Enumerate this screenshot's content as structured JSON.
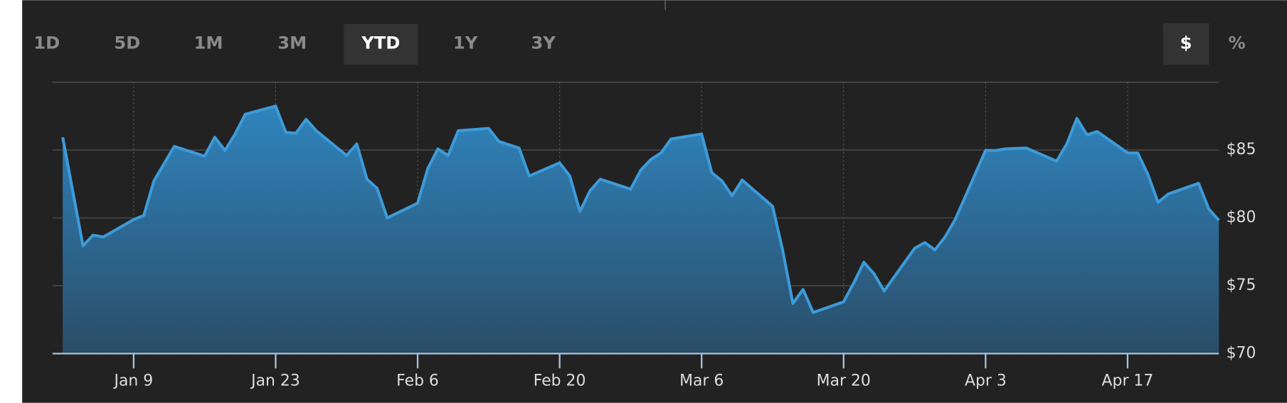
{
  "controls": {
    "ranges": [
      "1D",
      "5D",
      "1M",
      "3M",
      "YTD",
      "1Y",
      "3Y"
    ],
    "active_range": "YTD",
    "units": [
      "$",
      "%"
    ],
    "active_unit": "$"
  },
  "chart_data": {
    "type": "area",
    "color": "#3d9bd9",
    "grid": true,
    "x": [
      "Jan 2",
      "Jan 4",
      "Jan 5",
      "Jan 6",
      "Jan 9",
      "Jan 10",
      "Jan 11",
      "Jan 13",
      "Jan 16",
      "Jan 17",
      "Jan 18",
      "Jan 19",
      "Jan 20",
      "Jan 23",
      "Jan 24",
      "Jan 25",
      "Jan 26",
      "Jan 27",
      "Jan 30",
      "Jan 31",
      "Feb 1",
      "Feb 2",
      "Feb 3",
      "Feb 6",
      "Feb 7",
      "Feb 8",
      "Feb 9",
      "Feb 10",
      "Feb 13",
      "Feb 14",
      "Feb 16",
      "Feb 17",
      "Feb 20",
      "Feb 21",
      "Feb 22",
      "Feb 23",
      "Feb 24",
      "Feb 27",
      "Feb 28",
      "Mar 1",
      "Mar 2",
      "Mar 3",
      "Mar 6",
      "Mar 7",
      "Mar 8",
      "Mar 9",
      "Mar 10",
      "Mar 13",
      "Mar 14",
      "Mar 15",
      "Mar 16",
      "Mar 17",
      "Mar 20",
      "Mar 21",
      "Mar 22",
      "Mar 23",
      "Mar 24",
      "Mar 27",
      "Mar 28",
      "Mar 29",
      "Mar 30",
      "Mar 31",
      "Apr 3",
      "Apr 4",
      "Apr 5",
      "Apr 7",
      "Apr 10",
      "Apr 11",
      "Apr 12",
      "Apr 13",
      "Apr 14",
      "Apr 17",
      "Apr 18",
      "Apr 19",
      "Apr 20",
      "Apr 21",
      "Apr 24",
      "Apr 25",
      "Apr 26"
    ],
    "values": [
      85.94,
      77.94,
      78.73,
      78.6,
      79.88,
      80.18,
      82.73,
      85.27,
      84.55,
      85.94,
      84.97,
      86.18,
      87.64,
      88.24,
      86.3,
      86.24,
      87.27,
      86.42,
      84.6,
      85.45,
      82.85,
      82.18,
      80.0,
      81.09,
      83.64,
      85.09,
      84.6,
      86.42,
      86.6,
      85.64,
      85.15,
      83.09,
      84.06,
      83.09,
      80.48,
      82.0,
      82.85,
      82.12,
      83.52,
      84.3,
      84.79,
      85.82,
      86.18,
      83.33,
      82.73,
      81.64,
      82.79,
      80.85,
      77.58,
      73.7,
      74.73,
      73.03,
      73.82,
      75.21,
      76.73,
      75.88,
      74.61,
      77.76,
      78.18,
      77.64,
      78.6,
      79.88,
      84.97,
      84.97,
      85.09,
      85.15,
      84.18,
      85.45,
      87.33,
      86.12,
      86.36,
      84.79,
      84.79,
      83.21,
      81.15,
      81.76,
      82.55,
      80.67,
      79.82
    ],
    "xlim": [
      "Jan 1",
      "Apr 26"
    ],
    "xticks": [
      "Jan 9",
      "Jan 23",
      "Feb 6",
      "Feb 20",
      "Mar 6",
      "Mar 20",
      "Apr 3",
      "Apr 17"
    ],
    "ylim": [
      70,
      90
    ],
    "yticks": [
      {
        "value": 70,
        "label": "$70"
      },
      {
        "value": 75,
        "label": "$75"
      },
      {
        "value": 80,
        "label": "$80"
      },
      {
        "value": 85,
        "label": "$85"
      }
    ]
  }
}
